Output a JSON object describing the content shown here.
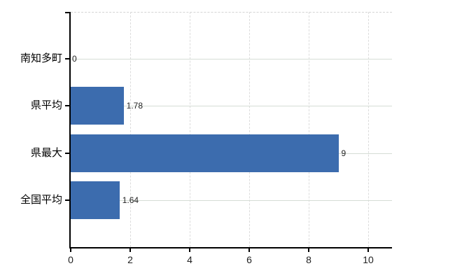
{
  "chart_data": {
    "type": "bar",
    "orientation": "horizontal",
    "title": "",
    "xlabel": "",
    "ylabel": "",
    "categories": [
      "南知多町",
      "県平均",
      "県最大",
      "全国平均"
    ],
    "values": [
      0,
      1.78,
      9,
      1.64
    ],
    "value_labels": [
      "0",
      "1.78",
      "9",
      "1.64"
    ],
    "x_tick_labels": [
      "0",
      "2",
      "4",
      "6",
      "8",
      "10"
    ],
    "x_tick_values": [
      0,
      2,
      4,
      6,
      8,
      10
    ],
    "xlim": [
      0,
      10.8
    ],
    "grid": true,
    "legend_position": "none",
    "colors": {
      "bar": "#3c6cae",
      "axis": "#000000",
      "grid_horizontal": "#d5ddd5",
      "grid_vertical": "#dcdcdc",
      "top_border": "#d5d5d5",
      "category_label": "#000000",
      "tick_label": "#222222",
      "value_label": "#222222",
      "background": "#ffffff"
    }
  }
}
